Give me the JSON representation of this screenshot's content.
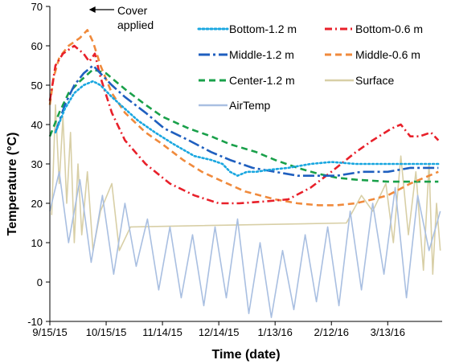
{
  "chart_data": {
    "type": "line",
    "xlabel": "Time (date)",
    "ylabel": "Temperature (°C)",
    "ylim": [
      -10,
      70
    ],
    "yticks": [
      -10,
      0,
      10,
      20,
      30,
      40,
      50,
      60,
      70
    ],
    "xlim": [
      "2015-09-15",
      "2016-04-11"
    ],
    "xticks": [
      {
        "date": "2015-09-15",
        "label": "9/15/15"
      },
      {
        "date": "2015-10-15",
        "label": "10/15/15"
      },
      {
        "date": "2015-11-14",
        "label": "11/14/15"
      },
      {
        "date": "2015-12-14",
        "label": "12/14/15"
      },
      {
        "date": "2016-01-13",
        "label": "1/13/16"
      },
      {
        "date": "2016-02-12",
        "label": "2/12/16"
      },
      {
        "date": "2016-03-13",
        "label": "3/13/16"
      }
    ],
    "grid": false,
    "legend_position": "top-right",
    "annotation": {
      "text_lines": [
        "Cover",
        "applied"
      ],
      "date": "2015-10-05",
      "value": 65
    },
    "series": [
      {
        "name": "Bottom-1.2 m",
        "color": "#1aa7e0",
        "dash": "dotted",
        "points": [
          [
            "2015-09-18",
            38
          ],
          [
            "2015-09-23",
            44
          ],
          [
            "2015-09-28",
            48
          ],
          [
            "2015-10-03",
            50
          ],
          [
            "2015-10-08",
            51
          ],
          [
            "2015-10-12",
            50
          ],
          [
            "2015-10-18",
            47
          ],
          [
            "2015-10-25",
            44
          ],
          [
            "2015-11-01",
            41
          ],
          [
            "2015-11-10",
            38
          ],
          [
            "2015-11-20",
            35
          ],
          [
            "2015-12-01",
            32
          ],
          [
            "2015-12-10",
            31
          ],
          [
            "2015-12-16",
            30
          ],
          [
            "2015-12-20",
            28
          ],
          [
            "2015-12-24",
            27
          ],
          [
            "2015-12-29",
            28
          ],
          [
            "2016-01-03",
            28
          ],
          [
            "2016-01-10",
            28.5
          ],
          [
            "2016-01-20",
            29
          ],
          [
            "2016-02-01",
            30
          ],
          [
            "2016-02-12",
            30.5
          ],
          [
            "2016-02-25",
            30
          ],
          [
            "2016-03-10",
            30
          ],
          [
            "2016-03-25",
            30
          ],
          [
            "2016-04-09",
            30
          ]
        ]
      },
      {
        "name": "Bottom-0.6 m",
        "color": "#e8202a",
        "dash": "dashdot",
        "points": [
          [
            "2015-09-15",
            46
          ],
          [
            "2015-09-18",
            55
          ],
          [
            "2015-09-22",
            58
          ],
          [
            "2015-09-28",
            60
          ],
          [
            "2015-10-03",
            58
          ],
          [
            "2015-10-06",
            56
          ],
          [
            "2015-10-09",
            58
          ],
          [
            "2015-10-12",
            52
          ],
          [
            "2015-10-18",
            43
          ],
          [
            "2015-10-25",
            36
          ],
          [
            "2015-11-05",
            30
          ],
          [
            "2015-11-18",
            25
          ],
          [
            "2015-12-01",
            22
          ],
          [
            "2015-12-14",
            20
          ],
          [
            "2015-12-25",
            20
          ],
          [
            "2016-01-08",
            20.5
          ],
          [
            "2016-01-20",
            21
          ],
          [
            "2016-02-01",
            24
          ],
          [
            "2016-02-12",
            28
          ],
          [
            "2016-02-25",
            33
          ],
          [
            "2016-03-05",
            36
          ],
          [
            "2016-03-15",
            39
          ],
          [
            "2016-03-20",
            40
          ],
          [
            "2016-03-25",
            37
          ],
          [
            "2016-03-30",
            37
          ],
          [
            "2016-04-05",
            38
          ],
          [
            "2016-04-09",
            36
          ]
        ]
      },
      {
        "name": "Middle-1.2 m",
        "color": "#1f5fbf",
        "dash": "longdashdot",
        "points": [
          [
            "2015-09-18",
            38
          ],
          [
            "2015-09-23",
            45
          ],
          [
            "2015-09-28",
            50
          ],
          [
            "2015-10-03",
            53
          ],
          [
            "2015-10-08",
            55
          ],
          [
            "2015-10-12",
            53
          ],
          [
            "2015-10-18",
            50
          ],
          [
            "2015-10-25",
            47
          ],
          [
            "2015-11-05",
            43
          ],
          [
            "2015-11-15",
            39
          ],
          [
            "2015-11-28",
            36
          ],
          [
            "2015-12-10",
            33
          ],
          [
            "2015-12-20",
            31
          ],
          [
            "2016-01-01",
            29
          ],
          [
            "2016-01-13",
            28
          ],
          [
            "2016-01-25",
            27
          ],
          [
            "2016-02-05",
            27
          ],
          [
            "2016-02-15",
            27
          ],
          [
            "2016-02-28",
            28
          ],
          [
            "2016-03-13",
            28
          ],
          [
            "2016-03-25",
            29
          ],
          [
            "2016-04-09",
            29
          ]
        ]
      },
      {
        "name": "Middle-0.6 m",
        "color": "#f08a3c",
        "dash": "dashed",
        "points": [
          [
            "2015-09-15",
            45
          ],
          [
            "2015-09-17",
            52
          ],
          [
            "2015-09-20",
            57
          ],
          [
            "2015-09-25",
            60
          ],
          [
            "2015-10-01",
            62
          ],
          [
            "2015-10-05",
            64
          ],
          [
            "2015-10-08",
            61
          ],
          [
            "2015-10-12",
            55
          ],
          [
            "2015-10-18",
            48
          ],
          [
            "2015-10-25",
            43
          ],
          [
            "2015-11-05",
            38
          ],
          [
            "2015-11-14",
            35
          ],
          [
            "2015-11-25",
            31
          ],
          [
            "2015-12-05",
            28
          ],
          [
            "2015-12-14",
            26
          ],
          [
            "2015-12-28",
            23
          ],
          [
            "2016-01-13",
            21
          ],
          [
            "2016-01-25",
            20
          ],
          [
            "2016-02-05",
            19.5
          ],
          [
            "2016-02-15",
            19.5
          ],
          [
            "2016-02-25",
            20
          ],
          [
            "2016-03-05",
            21
          ],
          [
            "2016-03-13",
            22
          ],
          [
            "2016-03-25",
            25
          ],
          [
            "2016-04-09",
            28
          ]
        ]
      },
      {
        "name": "Center-1.2 m",
        "color": "#19a04a",
        "dash": "dashed",
        "points": [
          [
            "2015-09-15",
            37
          ],
          [
            "2015-09-20",
            43
          ],
          [
            "2015-09-25",
            48
          ],
          [
            "2015-10-01",
            51
          ],
          [
            "2015-10-08",
            54
          ],
          [
            "2015-10-15",
            53
          ],
          [
            "2015-10-25",
            49
          ],
          [
            "2015-11-05",
            45
          ],
          [
            "2015-11-14",
            42
          ],
          [
            "2015-11-28",
            39
          ],
          [
            "2015-12-10",
            37
          ],
          [
            "2015-12-20",
            35
          ],
          [
            "2016-01-03",
            33
          ],
          [
            "2016-01-13",
            31
          ],
          [
            "2016-01-25",
            29
          ],
          [
            "2016-02-05",
            27.5
          ],
          [
            "2016-02-15",
            26.5
          ],
          [
            "2016-02-25",
            26
          ],
          [
            "2016-03-13",
            25.5
          ],
          [
            "2016-03-28",
            25.5
          ],
          [
            "2016-04-09",
            25.5
          ]
        ]
      },
      {
        "name": "Surface",
        "color": "#d8cfa6",
        "dash": "solid",
        "points": [
          [
            "2015-09-16",
            17
          ],
          [
            "2015-09-18",
            45
          ],
          [
            "2015-09-20",
            25
          ],
          [
            "2015-09-22",
            42
          ],
          [
            "2015-09-24",
            20
          ],
          [
            "2015-09-26",
            38
          ],
          [
            "2015-09-28",
            10
          ],
          [
            "2015-09-30",
            30
          ],
          [
            "2015-10-02",
            12
          ],
          [
            "2015-10-05",
            28
          ],
          [
            "2015-10-08",
            8
          ],
          [
            "2015-10-12",
            18
          ],
          [
            "2015-10-18",
            25
          ],
          [
            "2015-10-22",
            8
          ],
          [
            "2015-10-28",
            14
          ],
          [
            "2016-02-20",
            15
          ],
          [
            "2016-02-28",
            22
          ],
          [
            "2016-03-05",
            18
          ],
          [
            "2016-03-12",
            25
          ],
          [
            "2016-03-16",
            10
          ],
          [
            "2016-03-20",
            32
          ],
          [
            "2016-03-24",
            12
          ],
          [
            "2016-03-28",
            28
          ],
          [
            "2016-04-01",
            3
          ],
          [
            "2016-04-04",
            30
          ],
          [
            "2016-04-06",
            2
          ],
          [
            "2016-04-08",
            20
          ],
          [
            "2016-04-10",
            8
          ]
        ]
      },
      {
        "name": "AirTemp",
        "color": "#a9bfe1",
        "dash": "solid",
        "points": [
          [
            "2015-09-15",
            18
          ],
          [
            "2015-09-20",
            28
          ],
          [
            "2015-09-25",
            10
          ],
          [
            "2015-10-01",
            26
          ],
          [
            "2015-10-07",
            5
          ],
          [
            "2015-10-13",
            22
          ],
          [
            "2015-10-19",
            2
          ],
          [
            "2015-10-25",
            20
          ],
          [
            "2015-10-31",
            4
          ],
          [
            "2015-11-06",
            16
          ],
          [
            "2015-11-12",
            -2
          ],
          [
            "2015-11-18",
            14
          ],
          [
            "2015-11-24",
            -4
          ],
          [
            "2015-11-30",
            12
          ],
          [
            "2015-12-06",
            -6
          ],
          [
            "2015-12-12",
            14
          ],
          [
            "2015-12-18",
            -4
          ],
          [
            "2015-12-24",
            16
          ],
          [
            "2015-12-30",
            -8
          ],
          [
            "2016-01-05",
            10
          ],
          [
            "2016-01-11",
            -9
          ],
          [
            "2016-01-17",
            8
          ],
          [
            "2016-01-23",
            -7
          ],
          [
            "2016-01-29",
            12
          ],
          [
            "2016-02-04",
            -5
          ],
          [
            "2016-02-10",
            14
          ],
          [
            "2016-02-16",
            -6
          ],
          [
            "2016-02-22",
            18
          ],
          [
            "2016-02-28",
            -2
          ],
          [
            "2016-03-05",
            20
          ],
          [
            "2016-03-11",
            2
          ],
          [
            "2016-03-17",
            24
          ],
          [
            "2016-03-23",
            -4
          ],
          [
            "2016-03-29",
            22
          ],
          [
            "2016-04-04",
            8
          ],
          [
            "2016-04-10",
            18
          ]
        ]
      }
    ]
  }
}
